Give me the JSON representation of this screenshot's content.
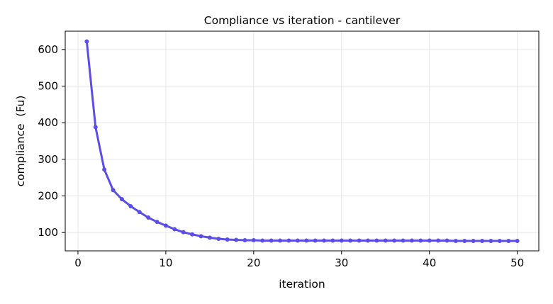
{
  "chart_data": {
    "type": "line",
    "title": "Compliance vs iteration - cantilever",
    "xlabel": "iteration",
    "ylabel": "compliance  (Fu)",
    "xlim": [
      -1.45,
      52.45
    ],
    "ylim": [
      50,
      650
    ],
    "xticks": [
      0,
      10,
      20,
      30,
      40,
      50
    ],
    "yticks": [
      100,
      200,
      300,
      400,
      500,
      600
    ],
    "grid": true,
    "legend": "none",
    "line_color": "#5b4ee8",
    "series": [
      {
        "x": [
          1,
          2,
          3,
          4,
          5,
          6,
          7,
          8,
          9,
          10,
          11,
          12,
          13,
          14,
          15,
          16,
          17,
          18,
          19,
          20,
          21,
          22,
          23,
          24,
          25,
          26,
          27,
          28,
          29,
          30,
          31,
          32,
          33,
          34,
          35,
          36,
          37,
          38,
          39,
          40,
          41,
          42,
          43,
          44,
          45,
          46,
          47,
          48,
          49,
          50
        ],
        "values": [
          622,
          388,
          272,
          216,
          191,
          172,
          156,
          141,
          129,
          119,
          109,
          101,
          95,
          90,
          86,
          83,
          81,
          80,
          79,
          79,
          78,
          78,
          78,
          78,
          78,
          78,
          78,
          78,
          78,
          78,
          78,
          78,
          78,
          78,
          78,
          78,
          78,
          78,
          78,
          78,
          78,
          78,
          77,
          77,
          77,
          77,
          77,
          77,
          77,
          77
        ]
      }
    ]
  }
}
